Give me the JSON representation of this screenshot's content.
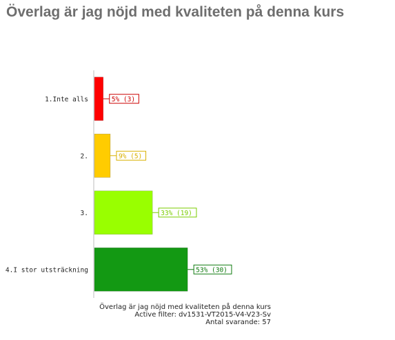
{
  "title": "Överlag är jag nöjd med kvaliteten på denna kurs",
  "chart_data": {
    "type": "bar",
    "orientation": "horizontal",
    "categories": [
      "1.Inte alls",
      "2.",
      "3.",
      "4.I stor utsträckning"
    ],
    "values": [
      5,
      9,
      33,
      53
    ],
    "counts": [
      3,
      5,
      19,
      30
    ],
    "data_labels": [
      "5% (3)",
      "9% (5)",
      "33% (19)",
      "53% (30)"
    ],
    "colors": [
      "#ff0000",
      "#ffcc00",
      "#99ff00",
      "#139913"
    ],
    "label_colors": [
      "#cc0000",
      "#d9b000",
      "#7acc00",
      "#0e7a0e"
    ],
    "xlim": [
      0,
      100
    ],
    "grid": false,
    "legend": "none"
  },
  "caption": {
    "question": "Överlag är jag nöjd med kvaliteten på denna kurs",
    "filter": "Active filter: dv1531-VT2015-V4-V23-Sv",
    "respondents": "Antal svarande: 57"
  }
}
